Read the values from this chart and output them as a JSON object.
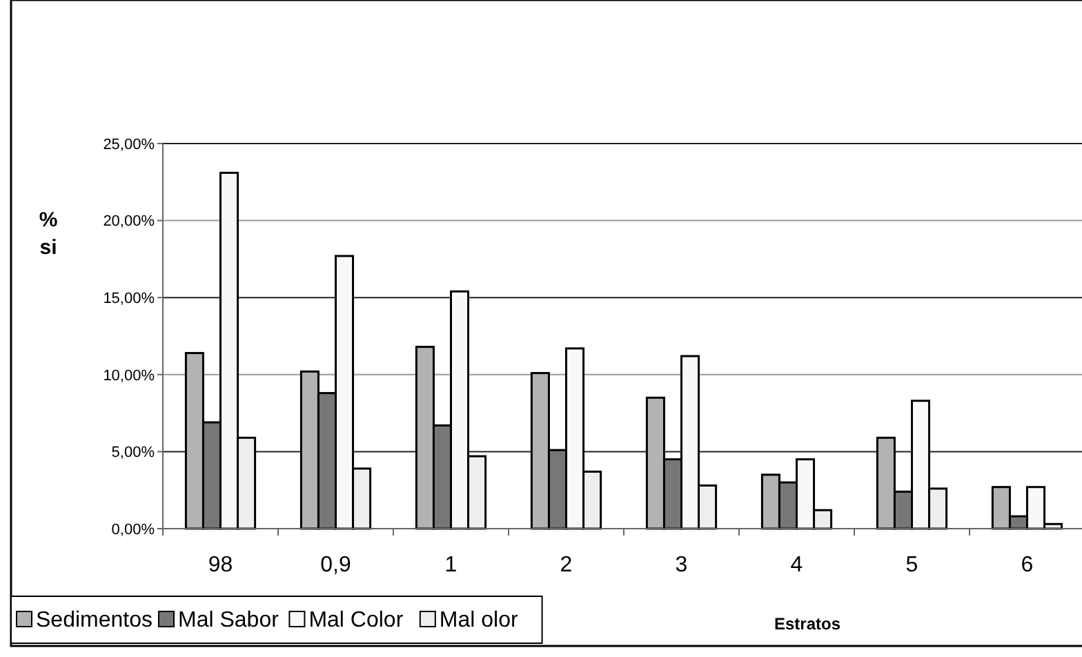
{
  "chart_data": {
    "type": "bar",
    "xlabel": "Estratos",
    "ylabel": "%\nsi",
    "categories": [
      "98",
      "0,9",
      "1",
      "2",
      "3",
      "4",
      "5",
      "6"
    ],
    "series": [
      {
        "name": "Sedimentos",
        "color": "#b3b3b3",
        "values": [
          11.4,
          10.2,
          11.8,
          10.1,
          8.5,
          3.5,
          5.9,
          2.7
        ]
      },
      {
        "name": "Mal Sabor",
        "color": "#777777",
        "values": [
          6.9,
          8.8,
          6.7,
          5.1,
          4.5,
          3.0,
          2.4,
          0.8
        ]
      },
      {
        "name": "Mal Color",
        "color": "#f8f8f8",
        "values": [
          23.1,
          17.7,
          15.4,
          11.7,
          11.2,
          4.5,
          8.3,
          2.7
        ]
      },
      {
        "name": "Mal olor",
        "color": "#eeeeee",
        "values": [
          5.9,
          3.9,
          4.7,
          3.7,
          2.8,
          1.2,
          2.6,
          0.3
        ]
      }
    ],
    "ylim": [
      0,
      25
    ],
    "yticks": [
      {
        "value": 0,
        "label": "0,00%"
      },
      {
        "value": 5,
        "label": "5,00%"
      },
      {
        "value": 10,
        "label": "10,00%"
      },
      {
        "value": 15,
        "label": "15,00%"
      },
      {
        "value": 20,
        "label": "20,00%"
      },
      {
        "value": 25,
        "label": "25,00%"
      }
    ],
    "grid": "y",
    "legend": "bottom left"
  }
}
